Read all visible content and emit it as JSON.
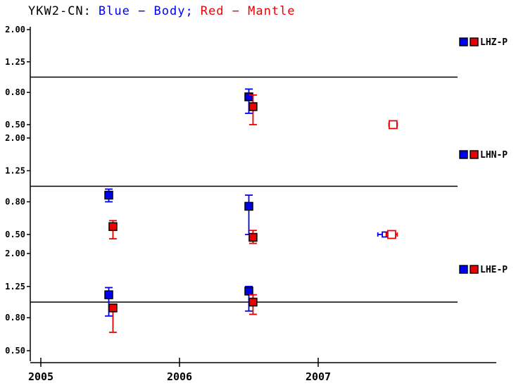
{
  "title": {
    "station": "YKW2-CN:",
    "body_label": "Blue − Body;",
    "mantle_label": "Red − Mantle"
  },
  "colors": {
    "body": "#0000f0",
    "mantle": "#ee0000",
    "axis": "#000000",
    "square_border": "#000000"
  },
  "chart_data": {
    "type": "scatter",
    "title": "YKW2-CN: Blue − Body; Red − Mantle",
    "x_axis": {
      "ticks": [
        "2005",
        "2006",
        "2007"
      ],
      "range": [
        2004.92,
        2008.3
      ]
    },
    "y_axis": {
      "scale": "log",
      "tick_labels": [
        "2.00",
        "1.25",
        "0.80",
        "0.50"
      ],
      "tick_values": [
        2.0,
        1.25,
        0.8,
        0.5
      ],
      "reference_value": 1.0,
      "range": [
        0.5,
        2.0
      ]
    },
    "legend": {
      "blue_meaning": "Body",
      "red_meaning": "Mantle"
    },
    "panels": [
      {
        "label": "LHZ-P",
        "series": [
          {
            "name": "Body",
            "color": "blue",
            "points": [
              {
                "x": 2006.5,
                "y": 0.75,
                "y_lo": 0.59,
                "y_hi": 0.84,
                "style": "filled"
              }
            ]
          },
          {
            "name": "Mantle",
            "color": "red",
            "points": [
              {
                "x": 2006.53,
                "y": 0.65,
                "y_lo": 0.5,
                "y_hi": 0.77,
                "style": "filled"
              },
              {
                "x": 2007.54,
                "y": 0.5,
                "x_err": 0.03,
                "style": "open"
              }
            ]
          }
        ]
      },
      {
        "label": "LHN-P",
        "series": [
          {
            "name": "Body",
            "color": "blue",
            "points": [
              {
                "x": 2005.49,
                "y": 0.88,
                "y_lo": 0.8,
                "y_hi": 0.96,
                "style": "filled"
              },
              {
                "x": 2006.5,
                "y": 0.75,
                "y_lo": 0.5,
                "y_hi": 0.88,
                "style": "filled"
              },
              {
                "x": 2007.48,
                "y": 0.5,
                "x_err": 0.05,
                "style": "open",
                "size": "small"
              }
            ]
          },
          {
            "name": "Mantle",
            "color": "red",
            "points": [
              {
                "x": 2005.52,
                "y": 0.56,
                "y_lo": 0.47,
                "y_hi": 0.61,
                "style": "filled"
              },
              {
                "x": 2006.53,
                "y": 0.48,
                "y_lo": 0.44,
                "y_hi": 0.53,
                "style": "filled"
              },
              {
                "x": 2007.53,
                "y": 0.5,
                "x_err": 0.04,
                "style": "open"
              }
            ]
          }
        ]
      },
      {
        "label": "LHE-P",
        "series": [
          {
            "name": "Body",
            "color": "blue",
            "points": [
              {
                "x": 2005.49,
                "y": 1.11,
                "y_lo": 0.82,
                "y_hi": 1.23,
                "style": "filled"
              },
              {
                "x": 2006.5,
                "y": 1.17,
                "y_lo": 0.88,
                "y_hi": 1.25,
                "style": "filled"
              }
            ]
          },
          {
            "name": "Mantle",
            "color": "red",
            "points": [
              {
                "x": 2005.52,
                "y": 0.92,
                "y_lo": 0.65,
                "y_hi": 0.96,
                "style": "filled"
              },
              {
                "x": 2006.53,
                "y": 1.0,
                "y_lo": 0.84,
                "y_hi": 1.11,
                "style": "filled"
              }
            ]
          }
        ]
      }
    ]
  }
}
